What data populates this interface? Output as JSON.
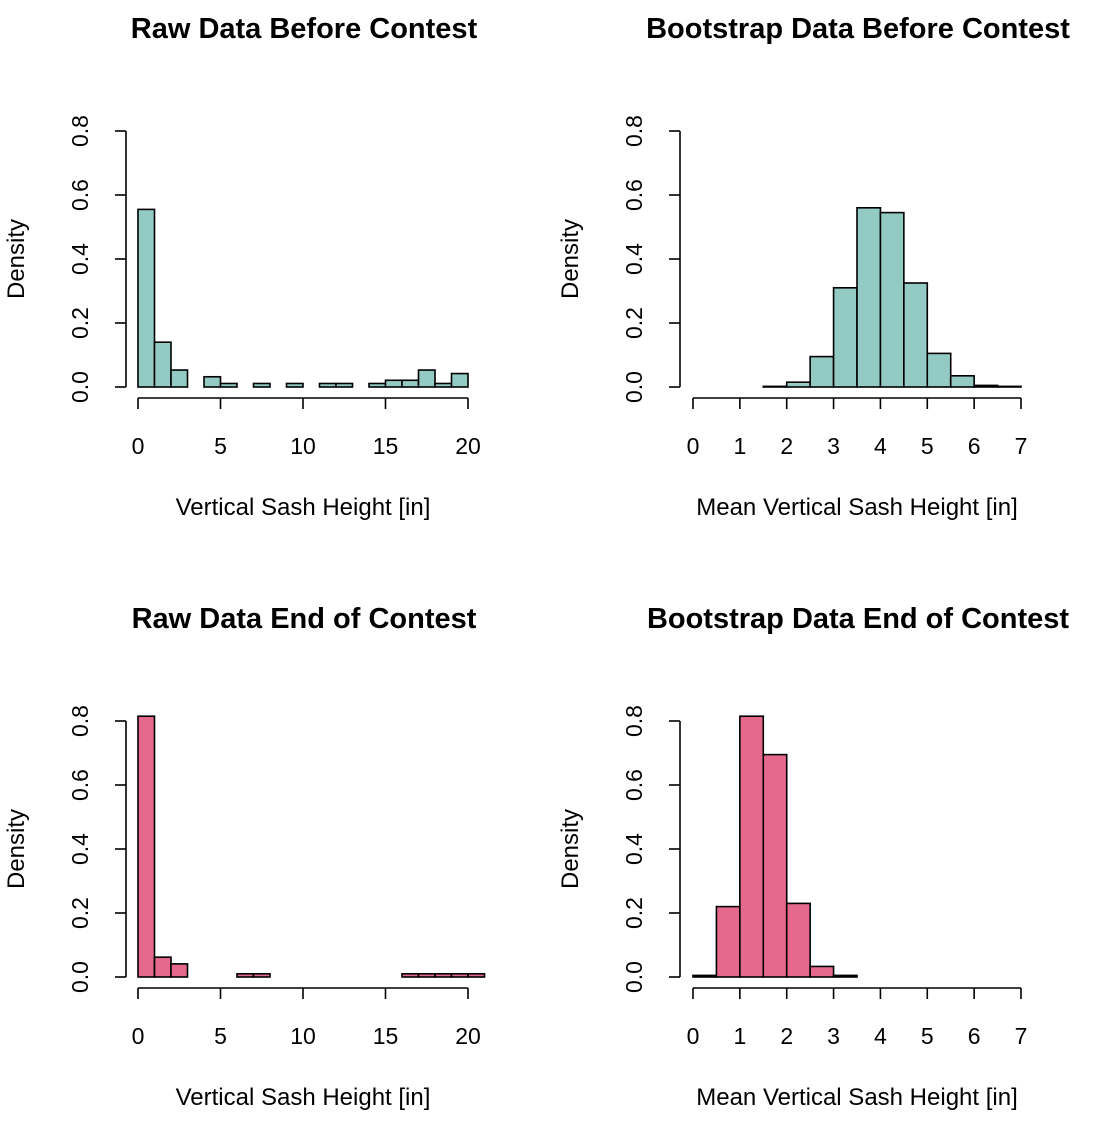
{
  "colors": {
    "before": "#93cbc4",
    "end": "#e5698c",
    "stroke": "#000000"
  },
  "chart_data": [
    {
      "type": "bar",
      "title": "Raw Data Before Contest",
      "xlabel": "Vertical Sash Height [in]",
      "ylabel": "Density",
      "xlim": [
        0,
        20
      ],
      "ylim": [
        0,
        0.8
      ],
      "xticks": [
        0,
        5,
        10,
        15,
        20
      ],
      "yticks": [
        0.0,
        0.2,
        0.4,
        0.6,
        0.8
      ],
      "ytick_labels": [
        "0.0",
        "0.2",
        "0.4",
        "0.6",
        "0.8"
      ],
      "bin_width": 1,
      "bin_starts": [
        0,
        1,
        2,
        3,
        4,
        5,
        6,
        7,
        8,
        9,
        10,
        11,
        12,
        13,
        14,
        15,
        16,
        17,
        18,
        19
      ],
      "values": [
        0.555,
        0.14,
        0.053,
        0.0,
        0.032,
        0.011,
        0.0,
        0.011,
        0.0,
        0.011,
        0.0,
        0.011,
        0.011,
        0.0,
        0.011,
        0.021,
        0.021,
        0.053,
        0.011,
        0.042
      ],
      "color": "#93cbc4"
    },
    {
      "type": "bar",
      "title": "Bootstrap Data Before Contest",
      "xlabel": "Mean Vertical Sash Height [in]",
      "ylabel": "Density",
      "xlim": [
        0,
        7
      ],
      "ylim": [
        0,
        0.8
      ],
      "xticks": [
        0,
        1,
        2,
        3,
        4,
        5,
        6,
        7
      ],
      "yticks": [
        0.0,
        0.2,
        0.4,
        0.6,
        0.8
      ],
      "ytick_labels": [
        "0.0",
        "0.2",
        "0.4",
        "0.6",
        "0.8"
      ],
      "bin_width": 0.5,
      "bin_starts": [
        1.5,
        2.0,
        2.5,
        3.0,
        3.5,
        4.0,
        4.5,
        5.0,
        5.5,
        6.0,
        6.5
      ],
      "values": [
        0.002,
        0.015,
        0.095,
        0.31,
        0.56,
        0.545,
        0.325,
        0.105,
        0.035,
        0.005,
        0.002
      ],
      "color": "#93cbc4"
    },
    {
      "type": "bar",
      "title": "Raw Data End of Contest",
      "xlabel": "Vertical Sash Height [in]",
      "ylabel": "Density",
      "xlim": [
        0,
        20
      ],
      "ylim": [
        0,
        0.8
      ],
      "xticks": [
        0,
        5,
        10,
        15,
        20
      ],
      "yticks": [
        0.0,
        0.2,
        0.4,
        0.6,
        0.8
      ],
      "ytick_labels": [
        "0.0",
        "0.2",
        "0.4",
        "0.6",
        "0.8"
      ],
      "bin_width": 1,
      "bin_starts": [
        0,
        1,
        2,
        3,
        4,
        5,
        6,
        7,
        8,
        9,
        10,
        11,
        12,
        13,
        14,
        15,
        16,
        17,
        18,
        19,
        20
      ],
      "values": [
        0.815,
        0.062,
        0.041,
        0.0,
        0.0,
        0.0,
        0.01,
        0.01,
        0.0,
        0.0,
        0.0,
        0.0,
        0.0,
        0.0,
        0.0,
        0.0,
        0.01,
        0.01,
        0.01,
        0.01,
        0.01
      ],
      "color": "#e5698c"
    },
    {
      "type": "bar",
      "title": "Bootstrap Data End of Contest",
      "xlabel": "Mean Vertical Sash Height [in]",
      "ylabel": "Density",
      "xlim": [
        0,
        7
      ],
      "ylim": [
        0,
        0.8
      ],
      "xticks": [
        0,
        1,
        2,
        3,
        4,
        5,
        6,
        7
      ],
      "yticks": [
        0.0,
        0.2,
        0.4,
        0.6,
        0.8
      ],
      "ytick_labels": [
        "0.0",
        "0.2",
        "0.4",
        "0.6",
        "0.8"
      ],
      "bin_width": 0.5,
      "bin_starts": [
        0.0,
        0.5,
        1.0,
        1.5,
        2.0,
        2.5,
        3.0
      ],
      "values": [
        0.005,
        0.22,
        0.815,
        0.695,
        0.23,
        0.033,
        0.005
      ],
      "color": "#e5698c"
    }
  ]
}
